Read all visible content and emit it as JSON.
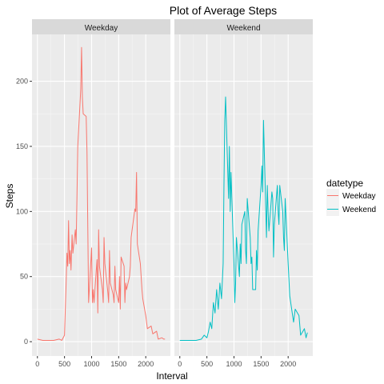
{
  "chart_data": {
    "type": "line",
    "title": "Plot of Average Steps",
    "xlabel": "Interval",
    "ylabel": "Steps",
    "xlim": [
      -100,
      2455
    ],
    "ylim": [
      -11,
      236
    ],
    "x_ticks": [
      0,
      500,
      1000,
      1500,
      2000
    ],
    "y_ticks": [
      0,
      50,
      100,
      150,
      200
    ],
    "facets": [
      "Weekday",
      "Weekend"
    ],
    "legend": {
      "title": "datetype",
      "position": "right"
    },
    "colors": {
      "Weekday": "#F8766D",
      "Weekend": "#00BFC4",
      "panel_bg": "#EBEBEB",
      "strip_bg": "#D9D9D9",
      "grid": "#FFFFFF"
    },
    "series": [
      {
        "name": "Weekday",
        "facet": "Weekday",
        "x": [
          0,
          100,
          200,
          300,
          400,
          450,
          500,
          530,
          545,
          560,
          575,
          590,
          605,
          620,
          640,
          655,
          700,
          715,
          730,
          745,
          800,
          815,
          830,
          845,
          900,
          915,
          930,
          945,
          1000,
          1015,
          1030,
          1045,
          1100,
          1115,
          1130,
          1145,
          1200,
          1215,
          1230,
          1245,
          1300,
          1315,
          1330,
          1345,
          1400,
          1415,
          1430,
          1445,
          1500,
          1515,
          1530,
          1545,
          1600,
          1615,
          1630,
          1645,
          1700,
          1715,
          1730,
          1745,
          1800,
          1815,
          1830,
          1845,
          1900,
          1915,
          1930,
          1945,
          2000,
          2030,
          2100,
          2130,
          2200,
          2230,
          2300,
          2330,
          2355
        ],
        "values": [
          2,
          1,
          1,
          1,
          2,
          1,
          5,
          45,
          68,
          58,
          93,
          60,
          70,
          55,
          82,
          68,
          86,
          75,
          110,
          150,
          194,
          226,
          188,
          175,
          173,
          146,
          88,
          30,
          72,
          30,
          40,
          30,
          63,
          22,
          86,
          58,
          40,
          30,
          80,
          60,
          38,
          30,
          70,
          45,
          36,
          30,
          58,
          40,
          30,
          50,
          25,
          65,
          58,
          30,
          45,
          40,
          50,
          58,
          80,
          85,
          102,
          100,
          130,
          75,
          60,
          50,
          40,
          33,
          20,
          10,
          12,
          6,
          8,
          2,
          3,
          2,
          2
        ]
      },
      {
        "name": "Weekend",
        "facet": "Weekend",
        "x": [
          0,
          100,
          200,
          300,
          400,
          450,
          500,
          530,
          560,
          590,
          620,
          650,
          680,
          710,
          740,
          770,
          800,
          815,
          830,
          845,
          900,
          915,
          930,
          945,
          1000,
          1015,
          1030,
          1045,
          1100,
          1115,
          1130,
          1145,
          1200,
          1215,
          1230,
          1245,
          1300,
          1315,
          1330,
          1345,
          1400,
          1415,
          1430,
          1445,
          1500,
          1515,
          1530,
          1545,
          1600,
          1615,
          1630,
          1645,
          1700,
          1715,
          1730,
          1745,
          1800,
          1815,
          1830,
          1845,
          1900,
          1915,
          1930,
          1945,
          2000,
          2030,
          2100,
          2130,
          2200,
          2230,
          2300,
          2330,
          2355
        ],
        "values": [
          1,
          1,
          1,
          1,
          2,
          5,
          3,
          8,
          15,
          10,
          30,
          22,
          40,
          25,
          45,
          33,
          60,
          120,
          170,
          188,
          110,
          150,
          100,
          130,
          60,
          30,
          45,
          80,
          50,
          75,
          60,
          90,
          100,
          70,
          60,
          110,
          80,
          60,
          65,
          40,
          40,
          70,
          55,
          85,
          120,
          135,
          115,
          170,
          80,
          120,
          100,
          85,
          115,
          110,
          65,
          90,
          120,
          100,
          90,
          120,
          100,
          80,
          70,
          110,
          60,
          35,
          15,
          25,
          20,
          5,
          10,
          3,
          7
        ]
      }
    ]
  }
}
